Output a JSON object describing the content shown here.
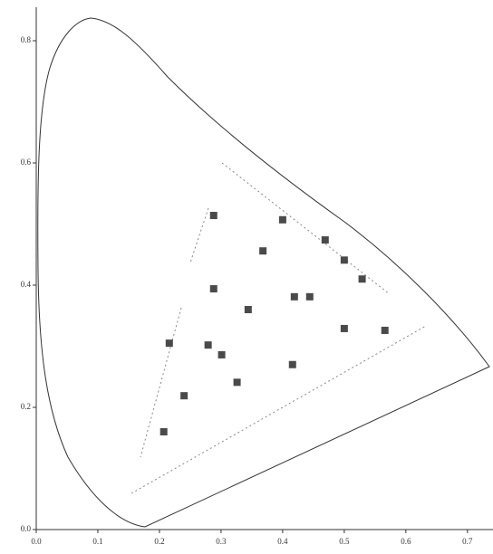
{
  "chart_data": {
    "type": "scatter",
    "x": [
      0.288,
      0.4,
      0.469,
      0.368,
      0.5,
      0.529,
      0.288,
      0.419,
      0.444,
      0.344,
      0.5,
      0.566,
      0.216,
      0.279,
      0.301,
      0.326,
      0.416,
      0.24,
      0.207
    ],
    "values": [
      0.514,
      0.507,
      0.474,
      0.456,
      0.441,
      0.41,
      0.394,
      0.381,
      0.381,
      0.36,
      0.329,
      0.326,
      0.305,
      0.302,
      0.286,
      0.241,
      0.27,
      0.219,
      0.16
    ],
    "color": "#4a4a4a",
    "xlim": [
      0,
      0.74
    ],
    "ylim": [
      0,
      0.84
    ],
    "xticks": [
      {
        "value": 0,
        "label": "0.0"
      },
      {
        "value": 0.1,
        "label": "0.1"
      },
      {
        "value": 0.2,
        "label": "0.2"
      },
      {
        "value": 0.3,
        "label": "0.3"
      },
      {
        "value": 0.4,
        "label": "0.4"
      },
      {
        "value": 0.5,
        "label": "0.5"
      },
      {
        "value": 0.6,
        "label": "0.6"
      },
      {
        "value": 0.7,
        "label": "0.7"
      }
    ],
    "yticks": [
      {
        "value": 0,
        "label": "0.0"
      },
      {
        "value": 0.2,
        "label": "0.2"
      },
      {
        "value": 0.4,
        "label": "0.4"
      },
      {
        "value": 0.6,
        "label": "0.6"
      },
      {
        "value": 0.8,
        "label": "0.8"
      }
    ]
  }
}
